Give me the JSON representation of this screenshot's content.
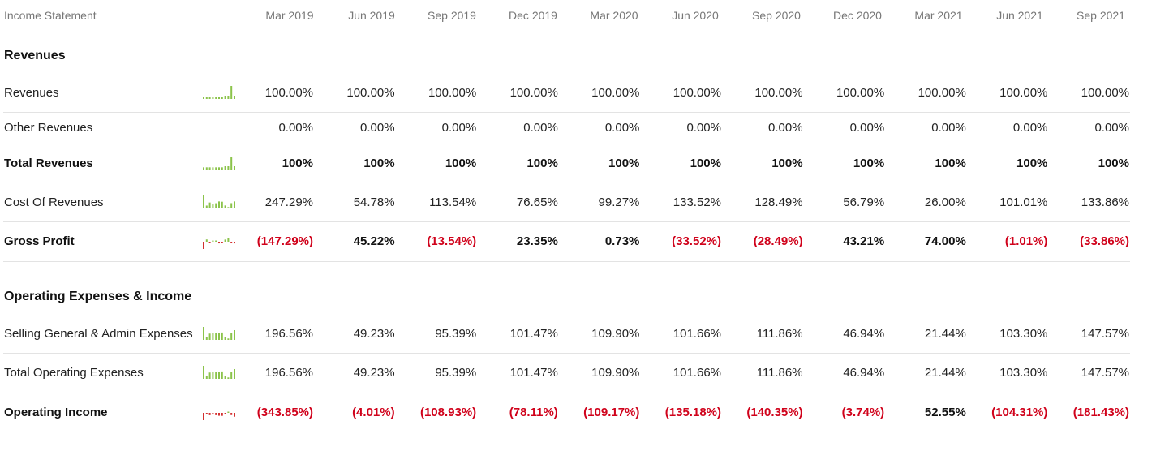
{
  "header": {
    "label": "Income Statement",
    "periods": [
      "Mar 2019",
      "Jun 2019",
      "Sep 2019",
      "Dec 2019",
      "Mar 2020",
      "Jun 2020",
      "Sep 2020",
      "Dec 2020",
      "Mar 2021",
      "Jun 2021",
      "Sep 2021"
    ]
  },
  "sections": [
    {
      "title": "Revenues",
      "rows": [
        {
          "label": "Revenues",
          "bold": false,
          "spark": [
            2,
            2,
            2,
            2,
            2,
            2,
            2,
            3,
            3,
            12,
            3
          ],
          "values": [
            {
              "text": "100.00%",
              "neg": false
            },
            {
              "text": "100.00%",
              "neg": false
            },
            {
              "text": "100.00%",
              "neg": false
            },
            {
              "text": "100.00%",
              "neg": false
            },
            {
              "text": "100.00%",
              "neg": false
            },
            {
              "text": "100.00%",
              "neg": false
            },
            {
              "text": "100.00%",
              "neg": false
            },
            {
              "text": "100.00%",
              "neg": false
            },
            {
              "text": "100.00%",
              "neg": false
            },
            {
              "text": "100.00%",
              "neg": false
            },
            {
              "text": "100.00%",
              "neg": false
            }
          ]
        },
        {
          "label": "Other Revenues",
          "bold": false,
          "spark": null,
          "values": [
            {
              "text": "0.00%",
              "neg": false
            },
            {
              "text": "0.00%",
              "neg": false
            },
            {
              "text": "0.00%",
              "neg": false
            },
            {
              "text": "0.00%",
              "neg": false
            },
            {
              "text": "0.00%",
              "neg": false
            },
            {
              "text": "0.00%",
              "neg": false
            },
            {
              "text": "0.00%",
              "neg": false
            },
            {
              "text": "0.00%",
              "neg": false
            },
            {
              "text": "0.00%",
              "neg": false
            },
            {
              "text": "0.00%",
              "neg": false
            },
            {
              "text": "0.00%",
              "neg": false
            }
          ]
        },
        {
          "label": "Total Revenues",
          "bold": true,
          "spark": [
            2,
            2,
            2,
            2,
            2,
            2,
            2,
            3,
            3,
            12,
            3
          ],
          "values": [
            {
              "text": "100%",
              "neg": false
            },
            {
              "text": "100%",
              "neg": false
            },
            {
              "text": "100%",
              "neg": false
            },
            {
              "text": "100%",
              "neg": false
            },
            {
              "text": "100%",
              "neg": false
            },
            {
              "text": "100%",
              "neg": false
            },
            {
              "text": "100%",
              "neg": false
            },
            {
              "text": "100%",
              "neg": false
            },
            {
              "text": "100%",
              "neg": false
            },
            {
              "text": "100%",
              "neg": false
            },
            {
              "text": "100%",
              "neg": false
            }
          ]
        },
        {
          "label": "Cost Of Revenues",
          "bold": false,
          "spark": [
            247.29,
            54.78,
            113.54,
            76.65,
            99.27,
            133.52,
            128.49,
            56.79,
            26.0,
            101.01,
            133.86
          ],
          "values": [
            {
              "text": "247.29%",
              "neg": false
            },
            {
              "text": "54.78%",
              "neg": false
            },
            {
              "text": "113.54%",
              "neg": false
            },
            {
              "text": "76.65%",
              "neg": false
            },
            {
              "text": "99.27%",
              "neg": false
            },
            {
              "text": "133.52%",
              "neg": false
            },
            {
              "text": "128.49%",
              "neg": false
            },
            {
              "text": "56.79%",
              "neg": false
            },
            {
              "text": "26.00%",
              "neg": false
            },
            {
              "text": "101.01%",
              "neg": false
            },
            {
              "text": "133.86%",
              "neg": false
            }
          ]
        },
        {
          "label": "Gross Profit",
          "bold": true,
          "spark": [
            -147.29,
            45.22,
            -13.54,
            23.35,
            0.73,
            -33.52,
            -28.49,
            43.21,
            74.0,
            -1.01,
            -33.86
          ],
          "values": [
            {
              "text": "(147.29%)",
              "neg": true
            },
            {
              "text": "45.22%",
              "neg": false
            },
            {
              "text": "(13.54%)",
              "neg": true
            },
            {
              "text": "23.35%",
              "neg": false
            },
            {
              "text": "0.73%",
              "neg": false
            },
            {
              "text": "(33.52%)",
              "neg": true
            },
            {
              "text": "(28.49%)",
              "neg": true
            },
            {
              "text": "43.21%",
              "neg": false
            },
            {
              "text": "74.00%",
              "neg": false
            },
            {
              "text": "(1.01%)",
              "neg": true
            },
            {
              "text": "(33.86%)",
              "neg": true
            }
          ]
        }
      ]
    },
    {
      "title": "Operating Expenses & Income",
      "rows": [
        {
          "label": "Selling General & Admin Expenses",
          "bold": false,
          "spark": [
            196.56,
            49.23,
            95.39,
            101.47,
            109.9,
            101.66,
            111.86,
            46.94,
            21.44,
            103.3,
            147.57
          ],
          "values": [
            {
              "text": "196.56%",
              "neg": false
            },
            {
              "text": "49.23%",
              "neg": false
            },
            {
              "text": "95.39%",
              "neg": false
            },
            {
              "text": "101.47%",
              "neg": false
            },
            {
              "text": "109.90%",
              "neg": false
            },
            {
              "text": "101.66%",
              "neg": false
            },
            {
              "text": "111.86%",
              "neg": false
            },
            {
              "text": "46.94%",
              "neg": false
            },
            {
              "text": "21.44%",
              "neg": false
            },
            {
              "text": "103.30%",
              "neg": false
            },
            {
              "text": "147.57%",
              "neg": false
            }
          ]
        },
        {
          "label": "Total Operating Expenses",
          "bold": false,
          "spark": [
            196.56,
            49.23,
            95.39,
            101.47,
            109.9,
            101.66,
            111.86,
            46.94,
            21.44,
            103.3,
            147.57
          ],
          "values": [
            {
              "text": "196.56%",
              "neg": false
            },
            {
              "text": "49.23%",
              "neg": false
            },
            {
              "text": "95.39%",
              "neg": false
            },
            {
              "text": "101.47%",
              "neg": false
            },
            {
              "text": "109.90%",
              "neg": false
            },
            {
              "text": "101.66%",
              "neg": false
            },
            {
              "text": "111.86%",
              "neg": false
            },
            {
              "text": "46.94%",
              "neg": false
            },
            {
              "text": "21.44%",
              "neg": false
            },
            {
              "text": "103.30%",
              "neg": false
            },
            {
              "text": "147.57%",
              "neg": false
            }
          ]
        },
        {
          "label": "Operating Income",
          "bold": true,
          "spark": [
            -343.85,
            -4.01,
            -108.93,
            -78.11,
            -109.17,
            -135.18,
            -140.35,
            -3.74,
            52.55,
            -104.31,
            -181.43
          ],
          "values": [
            {
              "text": "(343.85%)",
              "neg": true
            },
            {
              "text": "(4.01%)",
              "neg": true
            },
            {
              "text": "(108.93%)",
              "neg": true
            },
            {
              "text": "(78.11%)",
              "neg": true
            },
            {
              "text": "(109.17%)",
              "neg": true
            },
            {
              "text": "(135.18%)",
              "neg": true
            },
            {
              "text": "(140.35%)",
              "neg": true
            },
            {
              "text": "(3.74%)",
              "neg": true
            },
            {
              "text": "52.55%",
              "neg": false
            },
            {
              "text": "(104.31%)",
              "neg": true
            },
            {
              "text": "(181.43%)",
              "neg": true
            }
          ]
        }
      ]
    }
  ],
  "colors": {
    "positive_bar": "#8bc34a",
    "negative_bar": "#d32f2f",
    "negative_text": "#d0021b"
  }
}
